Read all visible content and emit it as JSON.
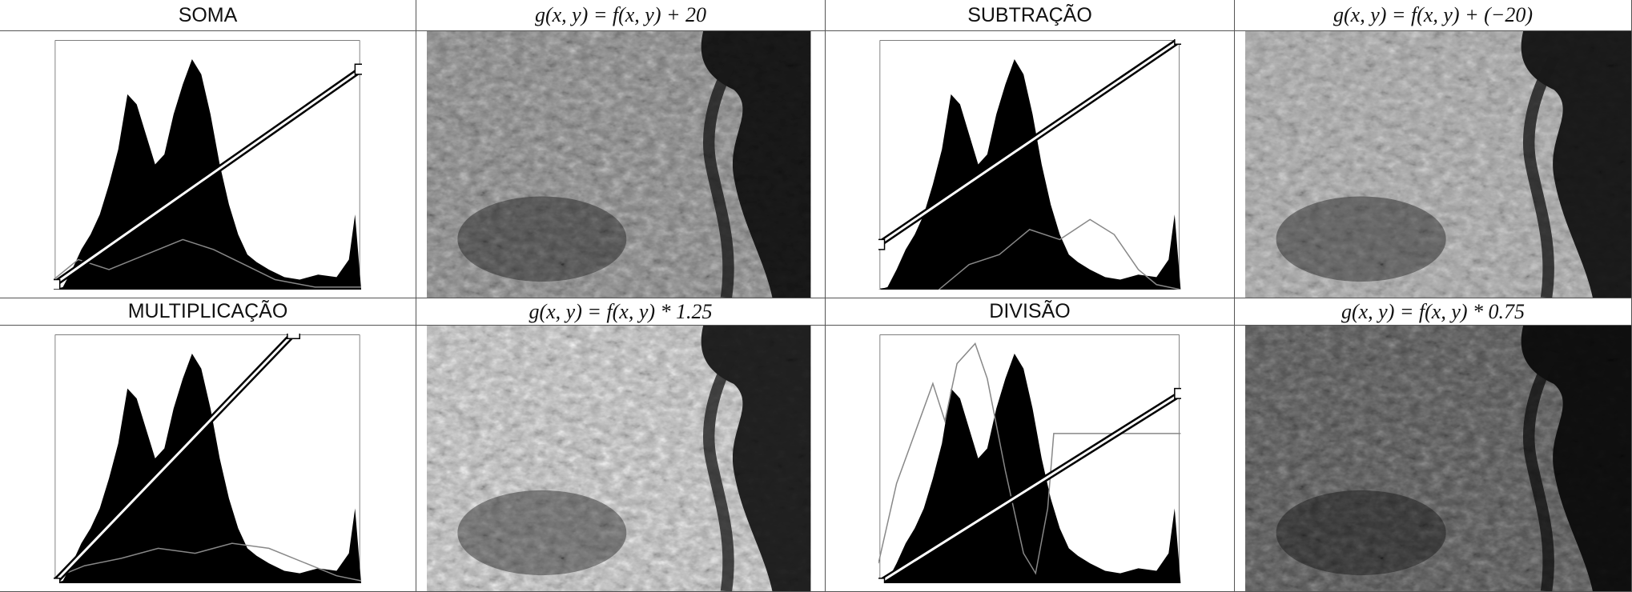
{
  "table": {
    "rows": [
      [
        "SOMA",
        "g(x, y) = f(x, y) + 20",
        "SUBTRAÇÃO",
        "g(x, y) = f(x, y) + (−20)"
      ],
      [
        "MULTIPLICAÇÃO",
        "g(x, y) = f(x, y) * 1.25",
        "DIVISÃO",
        "g(x, y) = f(x, y) * 0.75"
      ]
    ]
  }
}
